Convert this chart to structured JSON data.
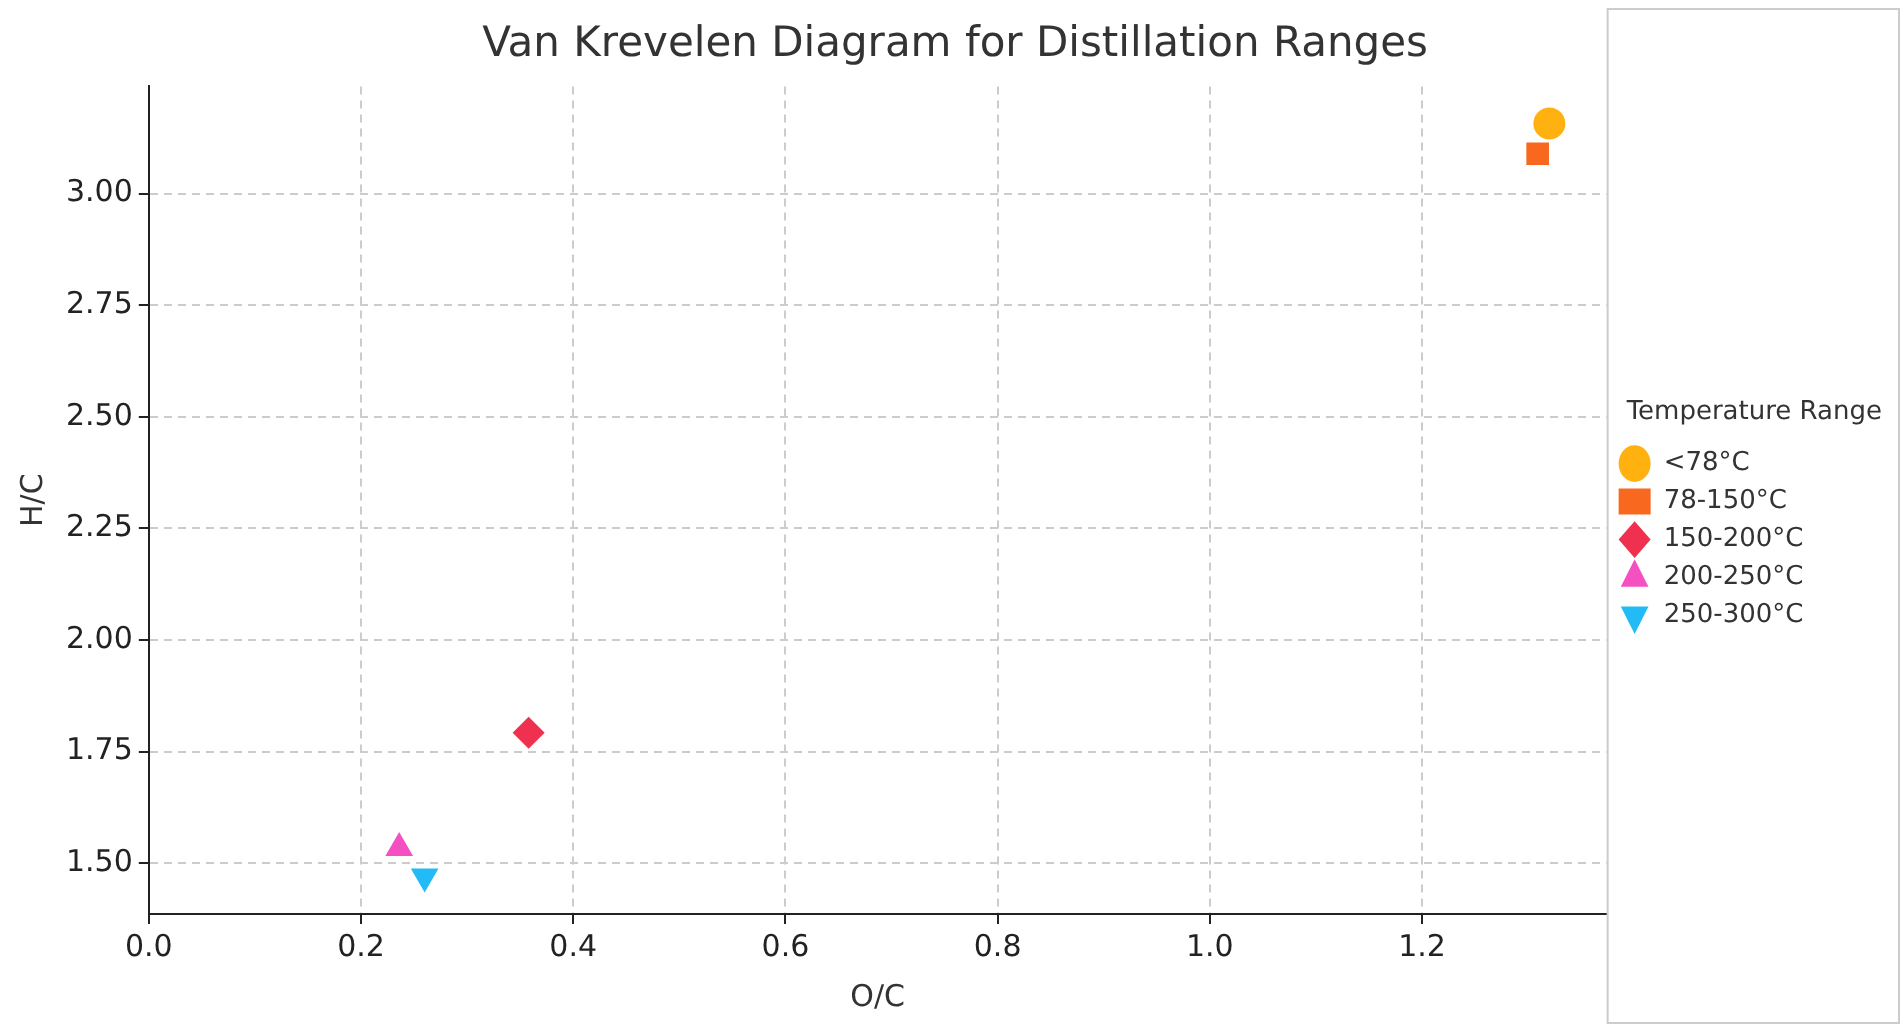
{
  "chart_data": {
    "type": "scatter",
    "title": "Van Krevelen Diagram for Distillation Ranges",
    "xlabel": "O/C",
    "ylabel": "H/C",
    "legend_title": "Temperature Range",
    "legend": "right",
    "grid": true,
    "xlim": [
      0,
      1.374
    ],
    "ylim": [
      1.386,
      3.24
    ],
    "xticks": [
      {
        "value": 0,
        "label": "0.0"
      },
      {
        "value": 0.2,
        "label": "0.2"
      },
      {
        "value": 0.4,
        "label": "0.4"
      },
      {
        "value": 0.6,
        "label": "0.6"
      },
      {
        "value": 0.8,
        "label": "0.8"
      },
      {
        "value": 1,
        "label": "1.0"
      },
      {
        "value": 1.2,
        "label": "1.2"
      }
    ],
    "yticks": [
      {
        "value": 1.5,
        "label": "1.50"
      },
      {
        "value": 1.75,
        "label": "1.75"
      },
      {
        "value": 2,
        "label": "2.00"
      },
      {
        "value": 2.25,
        "label": "2.25"
      },
      {
        "value": 2.5,
        "label": "2.50"
      },
      {
        "value": 2.75,
        "label": "2.75"
      },
      {
        "value": 3,
        "label": "3.00"
      }
    ],
    "series": [
      {
        "name": "<78°C",
        "color": "#ffb20f",
        "marker": "circle",
        "x": [
          1.32
        ],
        "values": [
          3.157
        ]
      },
      {
        "name": "78-150°C",
        "color": "#f8681e",
        "marker": "square",
        "x": [
          1.309
        ],
        "values": [
          3.089
        ]
      },
      {
        "name": "150-200°C",
        "color": "#f0304f",
        "marker": "diamond",
        "x": [
          0.358
        ],
        "values": [
          1.792
        ]
      },
      {
        "name": "200-250°C",
        "color": "#f550c2",
        "marker": "triangle",
        "x": [
          0.236
        ],
        "values": [
          1.534
        ]
      },
      {
        "name": "250-300°C",
        "color": "#22bbf5",
        "marker": "triangle_down",
        "x": [
          0.26
        ],
        "values": [
          1.47
        ]
      }
    ]
  }
}
